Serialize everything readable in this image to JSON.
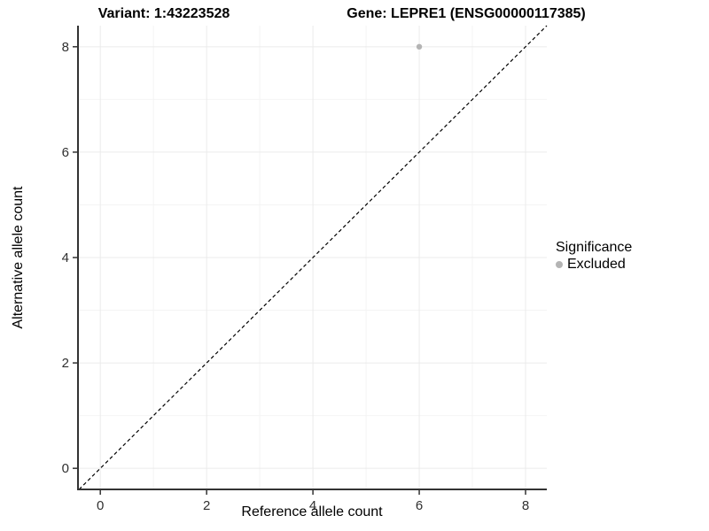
{
  "header": {
    "variant_title": "Variant: 1:43223528",
    "gene_title": "Gene: LEPRE1 (ENSG00000117385)"
  },
  "axes": {
    "x_label": "Reference allele count",
    "y_label": "Alternative allele count"
  },
  "legend": {
    "title": "Significance",
    "entries": [
      {
        "label": "Excluded",
        "color": "#b4b4b4"
      }
    ]
  },
  "colors": {
    "background": "#ffffff",
    "grid_major": "#ebebeb",
    "grid_minor": "#f4f4f4",
    "axis_line": "#333333",
    "tick_mark": "#333333",
    "tick_text": "#303030",
    "point": "#b4b4b4",
    "reference_line": "#000000"
  },
  "chart_data": {
    "type": "scatter",
    "title": "Variant: 1:43223528    Gene: LEPRE1 (ENSG00000117385)",
    "xlabel": "Reference allele count",
    "ylabel": "Alternative allele count",
    "xlim": [
      -0.42,
      8.4
    ],
    "ylim": [
      -0.4,
      8.4
    ],
    "xticks": [
      0,
      2,
      4,
      6,
      8
    ],
    "yticks": [
      0,
      2,
      4,
      6,
      8
    ],
    "x_minor_ticks": [
      1,
      3,
      5,
      7
    ],
    "y_minor_ticks": [
      1,
      3,
      5,
      7
    ],
    "grid": true,
    "series": [
      {
        "name": "Excluded",
        "color": "#b4b4b4",
        "points": [
          {
            "x": 6,
            "y": 8
          }
        ]
      }
    ],
    "reference_line": {
      "kind": "identity",
      "equation": "y = x",
      "style": "dashed",
      "color": "#000000"
    },
    "legend": {
      "title": "Significance",
      "position": "right",
      "entries": [
        "Excluded"
      ]
    }
  }
}
